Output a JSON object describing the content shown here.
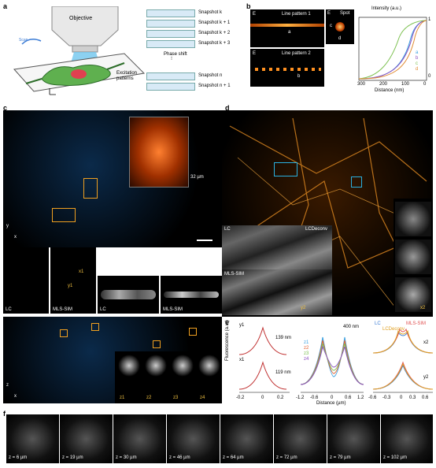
{
  "panels": {
    "a": "a",
    "b": "b",
    "c": "c",
    "d": "d",
    "e": "e",
    "f": "f"
  },
  "panel_a": {
    "objective": "Objective",
    "snapshots": [
      "Snapshot k",
      "Snapshot k + 1",
      "Snapshot k + 2",
      "Snapshot k + 3",
      "Snapshot n",
      "Snapshot n + 1"
    ],
    "phase_shift": "Phase shift",
    "excitation_patterns": "Excitation patterns"
  },
  "panel_b": {
    "line_pattern_1": "Line pattern 1",
    "line_pattern_2": "Line pattern 2",
    "spot": "Spot",
    "e_label": "E",
    "marker_a": "a",
    "marker_b": "b",
    "marker_c": "c",
    "marker_d": "d",
    "chart_ylabel": "Intensity (a.u.)",
    "chart_xlabel": "Distance (nm)",
    "chart_y_top": "1",
    "chart_y_bottom": "0",
    "chart_xticks": [
      "300",
      "200",
      "100",
      "0"
    ],
    "legend": [
      "a",
      "b",
      "c",
      "d"
    ],
    "colors": [
      "#3aa0e0",
      "#8a4fc0",
      "#7cc050",
      "#e08a30"
    ]
  },
  "panel_c": {
    "size_label": "32 µm",
    "axis_y": "y",
    "axis_x": "x",
    "axis_z": "z",
    "lc": "LC",
    "mls_sim": "MLS-SIM",
    "x1": "x1",
    "y1": "y1",
    "z_labels": [
      "z1",
      "z2",
      "z3",
      "z4"
    ]
  },
  "panel_d": {
    "lc": "LC",
    "lc_deconv": "LCDeconv",
    "mls_sim": "MLS-SIM",
    "x2": "x2",
    "y2": "y2"
  },
  "panel_e": {
    "ylabel": "Fluorescence (a.u.)",
    "xlabel": "Distance (µm)",
    "y1": "y1",
    "x1": "x1",
    "fwhm1": "139 nm",
    "fwhm2": "119 nm",
    "fwhm3": "400 nm",
    "legend_mid": [
      "z1",
      "z2",
      "z3",
      "z4"
    ],
    "legend_right": [
      "LC",
      "MLS-SIM",
      "LCDeconv"
    ],
    "x2": "x2",
    "y2": "y2",
    "xticks_left": [
      "-0.2",
      "0",
      "0.2"
    ],
    "xticks_mid": [
      "-1.2",
      "-0.6",
      "0",
      "0.6",
      "1.2"
    ],
    "xticks_right": [
      "-0.6",
      "-0.3",
      "0",
      "0.3",
      "0.6"
    ]
  },
  "panel_f": {
    "z_labels": [
      "z = 6 µm",
      "z = 19 µm",
      "z = 30 µm",
      "z = 46 µm",
      "z = 64 µm",
      "z = 72 µm",
      "z = 79 µm",
      "z = 102 µm"
    ]
  }
}
